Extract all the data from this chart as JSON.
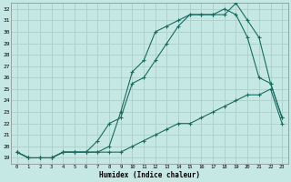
{
  "xlabel": "Humidex (Indice chaleur)",
  "ylabel": "",
  "bg_color": "#c6e8e4",
  "grid_color": "#aacfcc",
  "line_color": "#1a6b60",
  "xlim": [
    -0.5,
    23.5
  ],
  "ylim": [
    18.5,
    32.5
  ],
  "yticks": [
    19,
    20,
    21,
    22,
    23,
    24,
    25,
    26,
    27,
    28,
    29,
    30,
    31,
    32
  ],
  "xticks": [
    0,
    1,
    2,
    3,
    4,
    5,
    6,
    7,
    8,
    9,
    10,
    11,
    12,
    13,
    14,
    15,
    16,
    17,
    18,
    19,
    20,
    21,
    22,
    23
  ],
  "line1_x": [
    0,
    1,
    2,
    3,
    4,
    5,
    6,
    7,
    8,
    9,
    10,
    11,
    12,
    13,
    14,
    15,
    16,
    17,
    18,
    19,
    20,
    21,
    22,
    23
  ],
  "line1_y": [
    19.5,
    19.0,
    19.0,
    19.0,
    19.5,
    19.5,
    19.5,
    19.5,
    19.5,
    19.5,
    20.0,
    20.5,
    21.0,
    21.5,
    22.0,
    22.0,
    22.5,
    23.0,
    23.5,
    24.0,
    24.5,
    24.5,
    25.0,
    22.0
  ],
  "line2_x": [
    0,
    1,
    2,
    3,
    4,
    5,
    6,
    7,
    8,
    9,
    10,
    11,
    12,
    13,
    14,
    15,
    16,
    17,
    18,
    19,
    20,
    21,
    22,
    23
  ],
  "line2_y": [
    19.5,
    19.0,
    19.0,
    19.0,
    19.5,
    19.5,
    19.5,
    20.5,
    22.0,
    22.5,
    25.5,
    26.0,
    27.5,
    29.0,
    30.5,
    31.5,
    31.5,
    31.5,
    32.0,
    31.5,
    29.5,
    26.0,
    25.5,
    22.5
  ],
  "line3_x": [
    0,
    1,
    2,
    3,
    4,
    5,
    6,
    7,
    8,
    9,
    10,
    11,
    12,
    13,
    14,
    15,
    16,
    17,
    18,
    19,
    20,
    21,
    22,
    23
  ],
  "line3_y": [
    19.5,
    19.0,
    19.0,
    19.0,
    19.5,
    19.5,
    19.5,
    19.5,
    20.0,
    23.0,
    26.5,
    27.5,
    30.0,
    30.5,
    31.0,
    31.5,
    31.5,
    31.5,
    31.5,
    32.5,
    31.0,
    29.5,
    25.5,
    22.5
  ]
}
